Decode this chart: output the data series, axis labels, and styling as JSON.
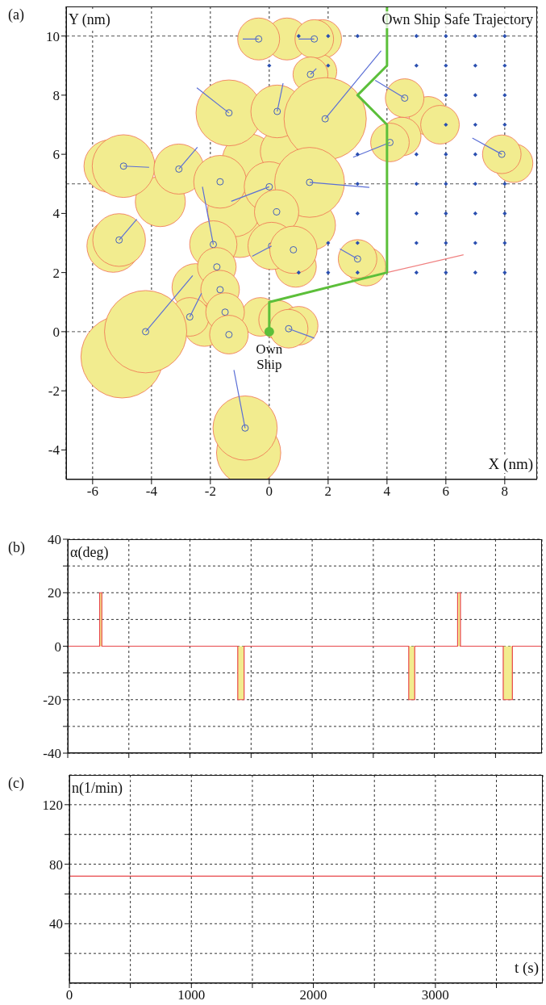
{
  "chart_data": [
    {
      "type": "bubble",
      "title": "(a)",
      "xlabel": "X (nm)",
      "ylabel": "Y (nm)",
      "xlim": [
        -6.9,
        9.1
      ],
      "ylim": [
        -5,
        11
      ],
      "xticks": [
        -6,
        -4,
        -2,
        0,
        2,
        4,
        6,
        8
      ],
      "yticks": [
        -4,
        -2,
        0,
        2,
        4,
        6,
        8,
        10
      ],
      "grid": "x",
      "ref_lines": [
        {
          "axis": "y",
          "value": 0,
          "color": "#555555",
          "line_style": "dashed"
        },
        {
          "axis": "y",
          "value": 5,
          "color": "#555555",
          "line_style": "dashed"
        },
        {
          "axis": "y",
          "value": 10,
          "color": "#555555",
          "line_style": "dashed"
        }
      ],
      "annotations": [
        {
          "text": "Own Ship",
          "x": 0,
          "y": 0
        }
      ],
      "series": [
        {
          "color": "#f2ec8f",
          "x": [
            0.6,
            1.8,
            1.7,
            5.4,
            5.8,
            4.5,
            8.3,
            -5.4,
            -3.7,
            -5.3,
            -1.0,
            1.4,
            -0.7,
            0.5,
            -1.2,
            -2.5,
            -0.3,
            0.3,
            1.0,
            3.3,
            -5.0,
            -0.7,
            -2.2,
            0.9
          ],
          "values": [
            9.9,
            9.9,
            8.8,
            7.3,
            7.0,
            6.6,
            5.7,
            5.6,
            4.4,
            2.9,
            3.4,
            3.6,
            5.8,
            6.1,
            4.1,
            1.5,
            0.5,
            0.4,
            0.2,
            2.2,
            -0.85,
            -4.1,
            0.2,
            2.2
          ],
          "sizes": [
            0.26,
            0.22,
            0.18,
            0.22,
            0.22,
            0.22,
            0.22,
            0.41,
            0.37,
            0.41,
            0.41,
            0.37,
            0.41,
            0.33,
            0.41,
            0.33,
            0.22,
            0.22,
            0.22,
            0.22,
            1,
            0.61,
            0.25,
            0.25
          ]
        },
        {
          "color": "#f2ec8f",
          "marker": "circle",
          "x": [
            -0.36,
            1.53,
            1.4,
            -1.37,
            0.27,
            1.9,
            4.6,
            4.1,
            7.9,
            -4.95,
            -3.07,
            -1.67,
            0,
            1.37,
            0.25,
            -5.1,
            -1.9,
            0.08,
            0.82,
            3.0,
            -1.78,
            -1.67,
            -2.7,
            -1.5,
            -4.2,
            -1.37,
            0.66,
            -0.82
          ],
          "values": [
            9.9,
            9.9,
            8.7,
            7.4,
            7.45,
            7.2,
            7.9,
            6.4,
            6.0,
            5.6,
            5.5,
            5.07,
            4.9,
            5.05,
            4.05,
            3.1,
            2.95,
            2.9,
            2.77,
            2.46,
            2.19,
            1.42,
            0.5,
            0.66,
            0,
            -0.1,
            0.1,
            -3.26
          ],
          "sizes": [
            0.26,
            0.22,
            0.18,
            0.64,
            0.41,
            1,
            0.22,
            0.22,
            0.22,
            0.58,
            0.37,
            0.41,
            0.37,
            0.72,
            0.29,
            0.41,
            0.33,
            0.33,
            0.33,
            0.22,
            0.22,
            0.22,
            0.22,
            0.22,
            1,
            0.22,
            0.22,
            0.61
          ]
        },
        {
          "type": "line",
          "color": "#5b6fd6",
          "x": [
            -0.36,
            -0.9,
            null,
            1.53,
            1.0,
            null,
            1.4,
            1.6,
            null,
            -1.37,
            -2.46,
            null,
            0.27,
            0.47,
            null,
            1.9,
            3.8,
            null,
            4.6,
            3.6,
            null,
            4.1,
            2.85,
            null,
            7.9,
            6.9,
            null,
            -4.95,
            -4.08,
            null,
            -3.07,
            -2.44,
            null,
            0,
            -1.29,
            null,
            1.37,
            3.4,
            null,
            -5.1,
            -4.5,
            null,
            -1.9,
            -2.27,
            null,
            0.08,
            -0.58,
            null,
            3.0,
            2.4,
            null,
            -4.2,
            -2.6,
            null,
            -2.7,
            -2.3,
            null,
            0.66,
            1.53,
            null,
            -0.82,
            -1.2
          ],
          "values": [
            9.9,
            9.9,
            null,
            9.9,
            9.9,
            null,
            8.7,
            8.9,
            null,
            7.4,
            8.25,
            null,
            7.45,
            8.4,
            null,
            7.2,
            9.5,
            null,
            7.9,
            8.5,
            null,
            6.4,
            5.9,
            null,
            6.0,
            6.55,
            null,
            5.6,
            5.56,
            null,
            5.5,
            6.24,
            null,
            4.9,
            4.41,
            null,
            5.05,
            4.88,
            null,
            3.1,
            3.8,
            null,
            2.95,
            4.9,
            null,
            2.9,
            2.55,
            null,
            2.46,
            2.8,
            null,
            0,
            1.9,
            null,
            0.5,
            1.3,
            null,
            0.1,
            -0.22,
            null,
            -3.26,
            -1.3
          ]
        },
        {
          "type": "scatter",
          "color": "#2a4fb0",
          "marker": "diamond",
          "x": [
            1,
            2,
            3,
            5,
            6,
            7,
            8,
            0,
            2,
            5,
            6,
            7,
            8,
            6,
            7,
            8,
            6,
            7,
            8,
            3,
            5,
            6,
            7,
            3,
            5,
            6,
            7,
            8,
            3,
            5,
            6,
            7,
            8,
            2,
            3,
            5,
            6,
            7,
            8,
            1,
            2,
            3,
            5,
            6,
            7,
            8
          ],
          "values": [
            10,
            10,
            10,
            10,
            10,
            10,
            10,
            9,
            9,
            9,
            9,
            9,
            9,
            8,
            8,
            8,
            7,
            7,
            7,
            6,
            6,
            6,
            6,
            5,
            5,
            5,
            5,
            5,
            4,
            4,
            4,
            4,
            4,
            3,
            3,
            3,
            3,
            3,
            3,
            2,
            2,
            2,
            2,
            2,
            2,
            2
          ]
        },
        {
          "type": "line",
          "color": "#f08080",
          "x": [
            4,
            6.6
          ],
          "values": [
            2,
            2.6
          ]
        },
        {
          "type": "line",
          "name": "Own Ship Safe Trajectory",
          "color": "#5cbf3a",
          "x": [
            0,
            0,
            4,
            4,
            3,
            4,
            4
          ],
          "values": [
            0,
            1,
            2,
            7,
            8,
            9,
            11
          ]
        },
        {
          "type": "scatter",
          "color": "#5cbf3a",
          "marker": "circle",
          "x": [
            0
          ],
          "values": [
            0
          ]
        }
      ]
    },
    {
      "type": "area",
      "title": "(b)",
      "ylabel": "α(deg)",
      "xlim": [
        0,
        3880
      ],
      "ylim": [
        -40,
        40
      ],
      "xticks": [
        0,
        {
          "value": 500,
          "label": null
        },
        1000,
        {
          "value": 1500,
          "label": null
        },
        2000,
        {
          "value": 2500,
          "label": null
        },
        3000,
        {
          "value": 3500,
          "label": null
        }
      ],
      "yticks": [
        -40,
        {
          "value": -30,
          "label": null
        },
        -20,
        {
          "value": -10,
          "label": null
        },
        0,
        {
          "value": 10,
          "label": null
        },
        20,
        {
          "value": 30,
          "label": null
        },
        40
      ],
      "grid": true,
      "tick_labels": "y",
      "series": [
        {
          "color": "#e8474a",
          "x": [
            0,
            261,
            261,
            279,
            279,
            1391,
            1391,
            1443,
            1443,
            2790,
            2790,
            2839,
            2839,
            3190,
            3190,
            3213,
            3213,
            3563,
            3563,
            3638,
            3638,
            3880
          ],
          "values": [
            0,
            0,
            20,
            20,
            0,
            0,
            -20,
            -20,
            0,
            0,
            -20,
            -20,
            0,
            0,
            20,
            20,
            0,
            0,
            -20,
            -20,
            0,
            0
          ]
        }
      ]
    },
    {
      "type": "line",
      "title": "(c)",
      "xlabel": "t (s)",
      "ylabel": "n(1/min)",
      "xlim": [
        0,
        3880
      ],
      "ylim": [
        0,
        140
      ],
      "xticks": [
        0,
        {
          "value": 500,
          "label": null
        },
        1000,
        {
          "value": 1500,
          "label": null
        },
        2000,
        {
          "value": 2500,
          "label": null
        },
        3000,
        {
          "value": 3500,
          "label": null
        }
      ],
      "yticks": [
        {
          "value": 20,
          "label": null
        },
        40,
        {
          "value": 60,
          "label": null
        },
        80,
        {
          "value": 100,
          "label": null
        },
        120
      ],
      "grid": true,
      "series": [
        {
          "color": "#e8474a",
          "x": [
            0,
            3880
          ],
          "values": [
            72,
            72
          ]
        }
      ]
    }
  ]
}
